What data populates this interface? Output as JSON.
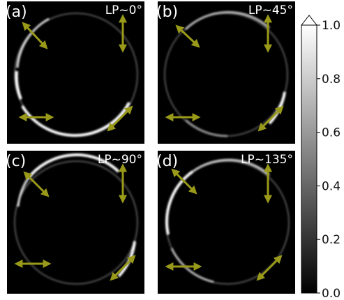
{
  "panels": [
    {
      "label": "(a)",
      "polarization": "LP~0°"
    },
    {
      "label": "(b)",
      "polarization": "LP~45°"
    },
    {
      "label": "(c)",
      "polarization": "LP~90°"
    },
    {
      "label": "(d)",
      "polarization": "LP~135°"
    }
  ],
  "colorbar": {
    "ticks": [
      "0.0",
      "0.2",
      "0.4",
      "0.6",
      "0.8",
      "1.0"
    ],
    "colormap": "gray",
    "range": [
      0.0,
      1.0
    ]
  },
  "colors": {
    "background": "#000000",
    "arrow": "#9a9a1a",
    "ring": "#ffffff"
  }
}
